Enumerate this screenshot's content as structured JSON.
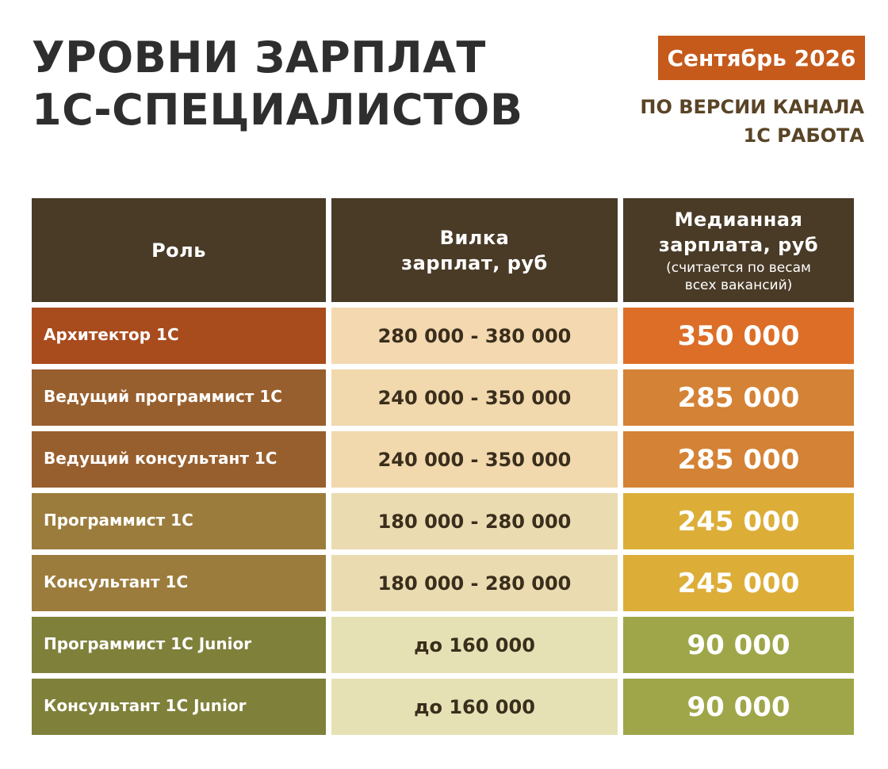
{
  "header": {
    "title_line1": "УРОВНИ ЗАРПЛАТ",
    "title_line2": "1С-СПЕЦИАЛИСТОВ",
    "date": "Сентябрь 2026",
    "source_line1": "ПО ВЕРСИИ КАНАЛА",
    "source_line2": "1С РАБОТА"
  },
  "table": {
    "columns": {
      "role": "Роль",
      "range_line1": "Вилка",
      "range_line2": "зарплат, руб",
      "median_line1": "Медианная",
      "median_line2": "зарплата, руб",
      "median_note_line1": "(считается по весам",
      "median_note_line2": "всех вакансий)"
    },
    "rows": [
      {
        "role": "Архитектор 1С",
        "range": "280 000 - 380 000",
        "median": "350 000"
      },
      {
        "role": "Ведущий программист 1С",
        "range": "240 000 - 350 000",
        "median": "285 000"
      },
      {
        "role": "Ведущий консультант 1С",
        "range": "240 000 - 350 000",
        "median": "285 000"
      },
      {
        "role": "Программист 1С",
        "range": "180 000 - 280 000",
        "median": "245 000"
      },
      {
        "role": "Консультант 1С",
        "range": "180 000 - 280 000",
        "median": "245 000"
      },
      {
        "role": "Программист 1С Junior",
        "range": "до 160 000",
        "median": "90 000"
      },
      {
        "role": "Консультант 1С Junior",
        "range": "до 160 000",
        "median": "90 000"
      }
    ]
  },
  "colors": {
    "header_bg": "#4a3b27",
    "date_badge": "#c55a1b",
    "role_row": [
      "#a84b1d",
      "#985f2e",
      "#985f2e",
      "#9b7c3c",
      "#9b7c3c",
      "#7f803a",
      "#7f803a"
    ],
    "range_row": [
      "#f3d8b0",
      "#f1d8ad",
      "#f1d8ad",
      "#eadbb1",
      "#eadbb1",
      "#e6e1b5",
      "#e6e1b5"
    ],
    "median_row": [
      "#dd6e27",
      "#d48235",
      "#d48235",
      "#dcae38",
      "#dcae38",
      "#9fa649",
      "#9fa649"
    ]
  }
}
